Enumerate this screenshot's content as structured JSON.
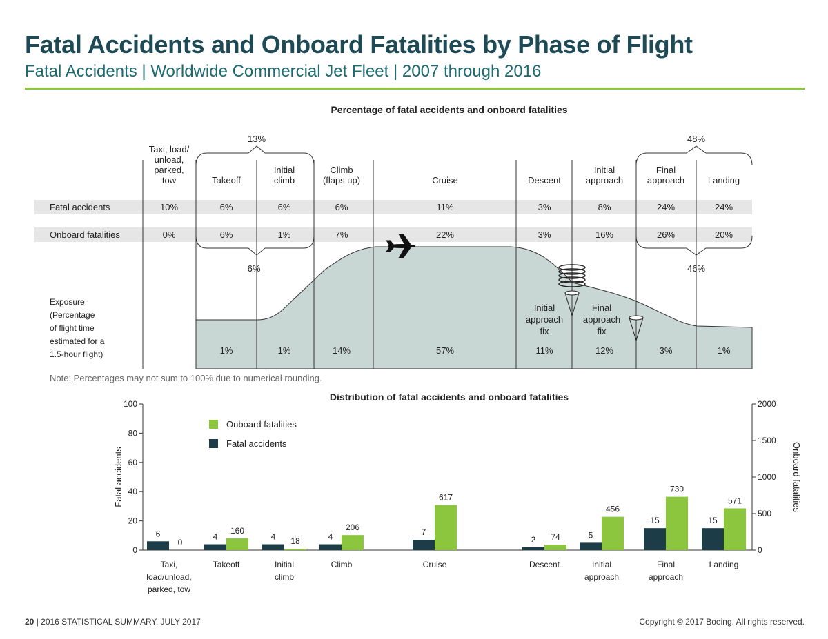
{
  "header": {
    "title": "Fatal Accidents and Onboard Fatalities by Phase of Flight",
    "subtitle": "Fatal Accidents | Worldwide Commercial Jet Fleet | 2007 through 2016"
  },
  "phase_diagram": {
    "title": "Percentage of fatal accidents and onboard fatalities",
    "phases": [
      {
        "label_lines": [
          "Taxi, load/",
          "unload,",
          "parked,",
          "tow"
        ],
        "fatal_accidents": "10%",
        "onboard_fatalities": "0%",
        "exposure": ""
      },
      {
        "label_lines": [
          "Takeoff"
        ],
        "fatal_accidents": "6%",
        "onboard_fatalities": "6%",
        "exposure": "1%"
      },
      {
        "label_lines": [
          "Initial",
          "climb"
        ],
        "fatal_accidents": "6%",
        "onboard_fatalities": "1%",
        "exposure": "1%"
      },
      {
        "label_lines": [
          "Climb",
          "(flaps up)"
        ],
        "fatal_accidents": "6%",
        "onboard_fatalities": "7%",
        "exposure": "14%"
      },
      {
        "label_lines": [
          "Cruise"
        ],
        "fatal_accidents": "11%",
        "onboard_fatalities": "22%",
        "exposure": "57%"
      },
      {
        "label_lines": [
          "Descent"
        ],
        "fatal_accidents": "3%",
        "onboard_fatalities": "3%",
        "exposure": "11%"
      },
      {
        "label_lines": [
          "Initial",
          "approach"
        ],
        "fatal_accidents": "8%",
        "onboard_fatalities": "16%",
        "exposure": "12%"
      },
      {
        "label_lines": [
          "Final",
          "approach"
        ],
        "fatal_accidents": "24%",
        "onboard_fatalities": "26%",
        "exposure": "3%"
      },
      {
        "label_lines": [
          "Landing"
        ],
        "fatal_accidents": "24%",
        "onboard_fatalities": "20%",
        "exposure": "1%"
      }
    ],
    "row_labels": {
      "fatal_accidents": "Fatal accidents",
      "onboard_fatalities": "Onboard fatalities"
    },
    "exposure_label_lines": [
      "Exposure",
      "(Percentage",
      "of flight time",
      "estimated for a",
      "1.5-hour flight)"
    ],
    "brackets": {
      "takeoff_group_accidents": "13%",
      "takeoff_group_fatalities": "6%",
      "landing_group_accidents": "48%",
      "landing_group_fatalities": "46%"
    },
    "markers": {
      "initial_approach_fix_lines": [
        "Initial",
        "approach",
        "fix"
      ],
      "final_approach_fix_lines": [
        "Final",
        "approach",
        "fix"
      ]
    },
    "note": "Note: Percentages may not sum to 100% due to numerical rounding."
  },
  "chart_data": {
    "type": "bar",
    "title": "Distribution of fatal accidents and onboard fatalities",
    "categories": [
      {
        "label_lines": [
          "Taxi,",
          "load/unload,",
          "parked, tow"
        ]
      },
      {
        "label_lines": [
          "Takeoff"
        ]
      },
      {
        "label_lines": [
          "Initial",
          "climb"
        ]
      },
      {
        "label_lines": [
          "Climb"
        ]
      },
      {
        "label_lines": [
          "Cruise"
        ]
      },
      {
        "label_lines": [
          "Descent"
        ]
      },
      {
        "label_lines": [
          "Initial",
          "approach"
        ]
      },
      {
        "label_lines": [
          "Final",
          "approach"
        ]
      },
      {
        "label_lines": [
          "Landing"
        ]
      }
    ],
    "series": [
      {
        "name": "Fatal accidents",
        "axis": "left",
        "color": "#1c3c48",
        "values": [
          6,
          4,
          4,
          4,
          7,
          2,
          5,
          15,
          15
        ]
      },
      {
        "name": "Onboard fatalities",
        "axis": "right",
        "color": "#8cc63f",
        "values": [
          0,
          160,
          18,
          206,
          617,
          74,
          456,
          730,
          571
        ]
      }
    ],
    "left_axis": {
      "label": "Fatal accidents",
      "min": 0,
      "max": 100,
      "ticks": [
        0,
        20,
        40,
        60,
        80,
        100
      ]
    },
    "right_axis": {
      "label": "Onboard fatalities",
      "min": 0,
      "max": 2000,
      "ticks": [
        0,
        500,
        1000,
        1500,
        2000
      ]
    },
    "legend": {
      "position": "top-left",
      "entries": [
        "Onboard fatalities",
        "Fatal accidents"
      ]
    }
  },
  "footer": {
    "page_number": "20",
    "left_text": " | 2016 STATISTICAL SUMMARY, JULY 2017",
    "right_text": "Copyright © 2017 Boeing. All rights reserved."
  },
  "colors": {
    "title": "#1d4a55",
    "accent_green": "#8cc63f",
    "dark_bar": "#1c3c48",
    "exposure_fill": "#c8d6d4",
    "row_band": "#e6e6e6"
  }
}
